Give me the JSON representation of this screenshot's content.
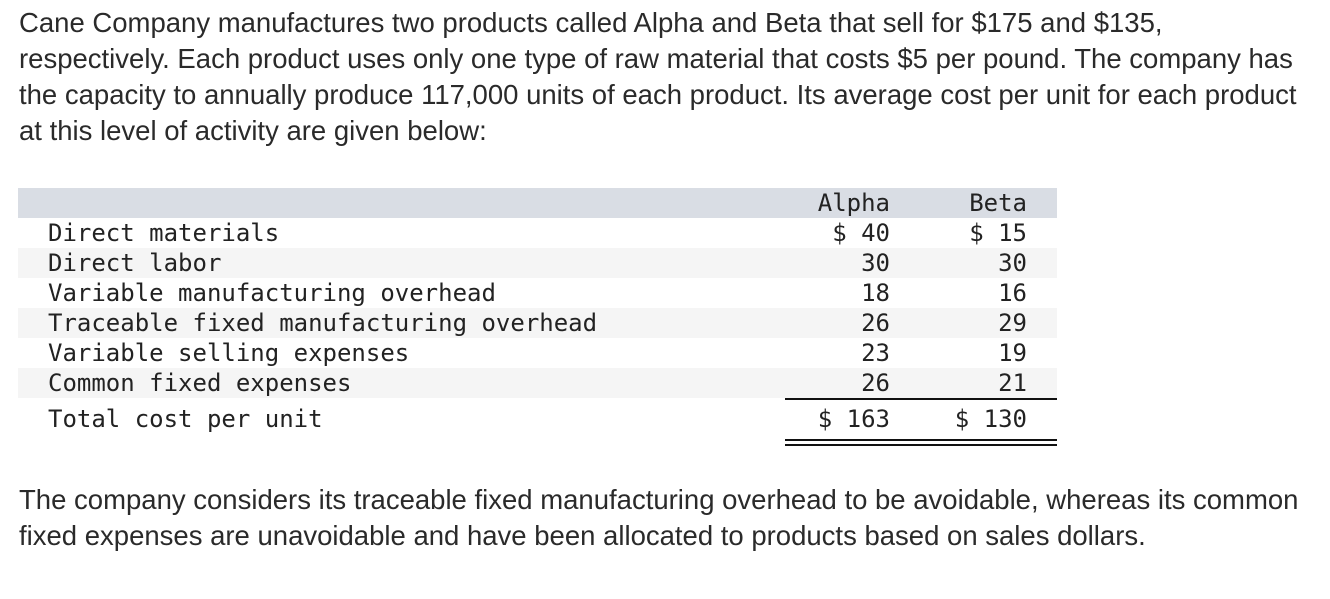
{
  "intro": {
    "text": "Cane Company manufactures two products called Alpha and Beta that sell for $175 and $135, respectively. Each product uses only one type of raw material that costs $5 per pound. The company has the capacity to annually produce 117,000 units of each product. Its average cost per unit for each product at this level of activity are given below:"
  },
  "table": {
    "columns": [
      "Alpha",
      "Beta"
    ],
    "rows": [
      {
        "label": "Direct materials",
        "alpha": "$ 40",
        "beta": "$ 15"
      },
      {
        "label": "Direct labor",
        "alpha": "30",
        "beta": "30"
      },
      {
        "label": "Variable manufacturing overhead",
        "alpha": "18",
        "beta": "16"
      },
      {
        "label": "Traceable fixed manufacturing overhead",
        "alpha": "26",
        "beta": "29"
      },
      {
        "label": "Variable selling expenses",
        "alpha": "23",
        "beta": "19"
      },
      {
        "label": "Common fixed expenses",
        "alpha": "26",
        "beta": "21"
      }
    ],
    "total": {
      "label": "Total cost per unit",
      "alpha": "$ 163",
      "beta": "$ 130"
    }
  },
  "outro": {
    "text": "The company considers its traceable fixed manufacturing overhead to be avoidable, whereas its common fixed expenses are unavoidable and have been allocated to products based on sales dollars."
  },
  "colors": {
    "header_band": "#d9dde4",
    "shaded_row": "#f5f5f5",
    "text": "#2a2a2a"
  }
}
